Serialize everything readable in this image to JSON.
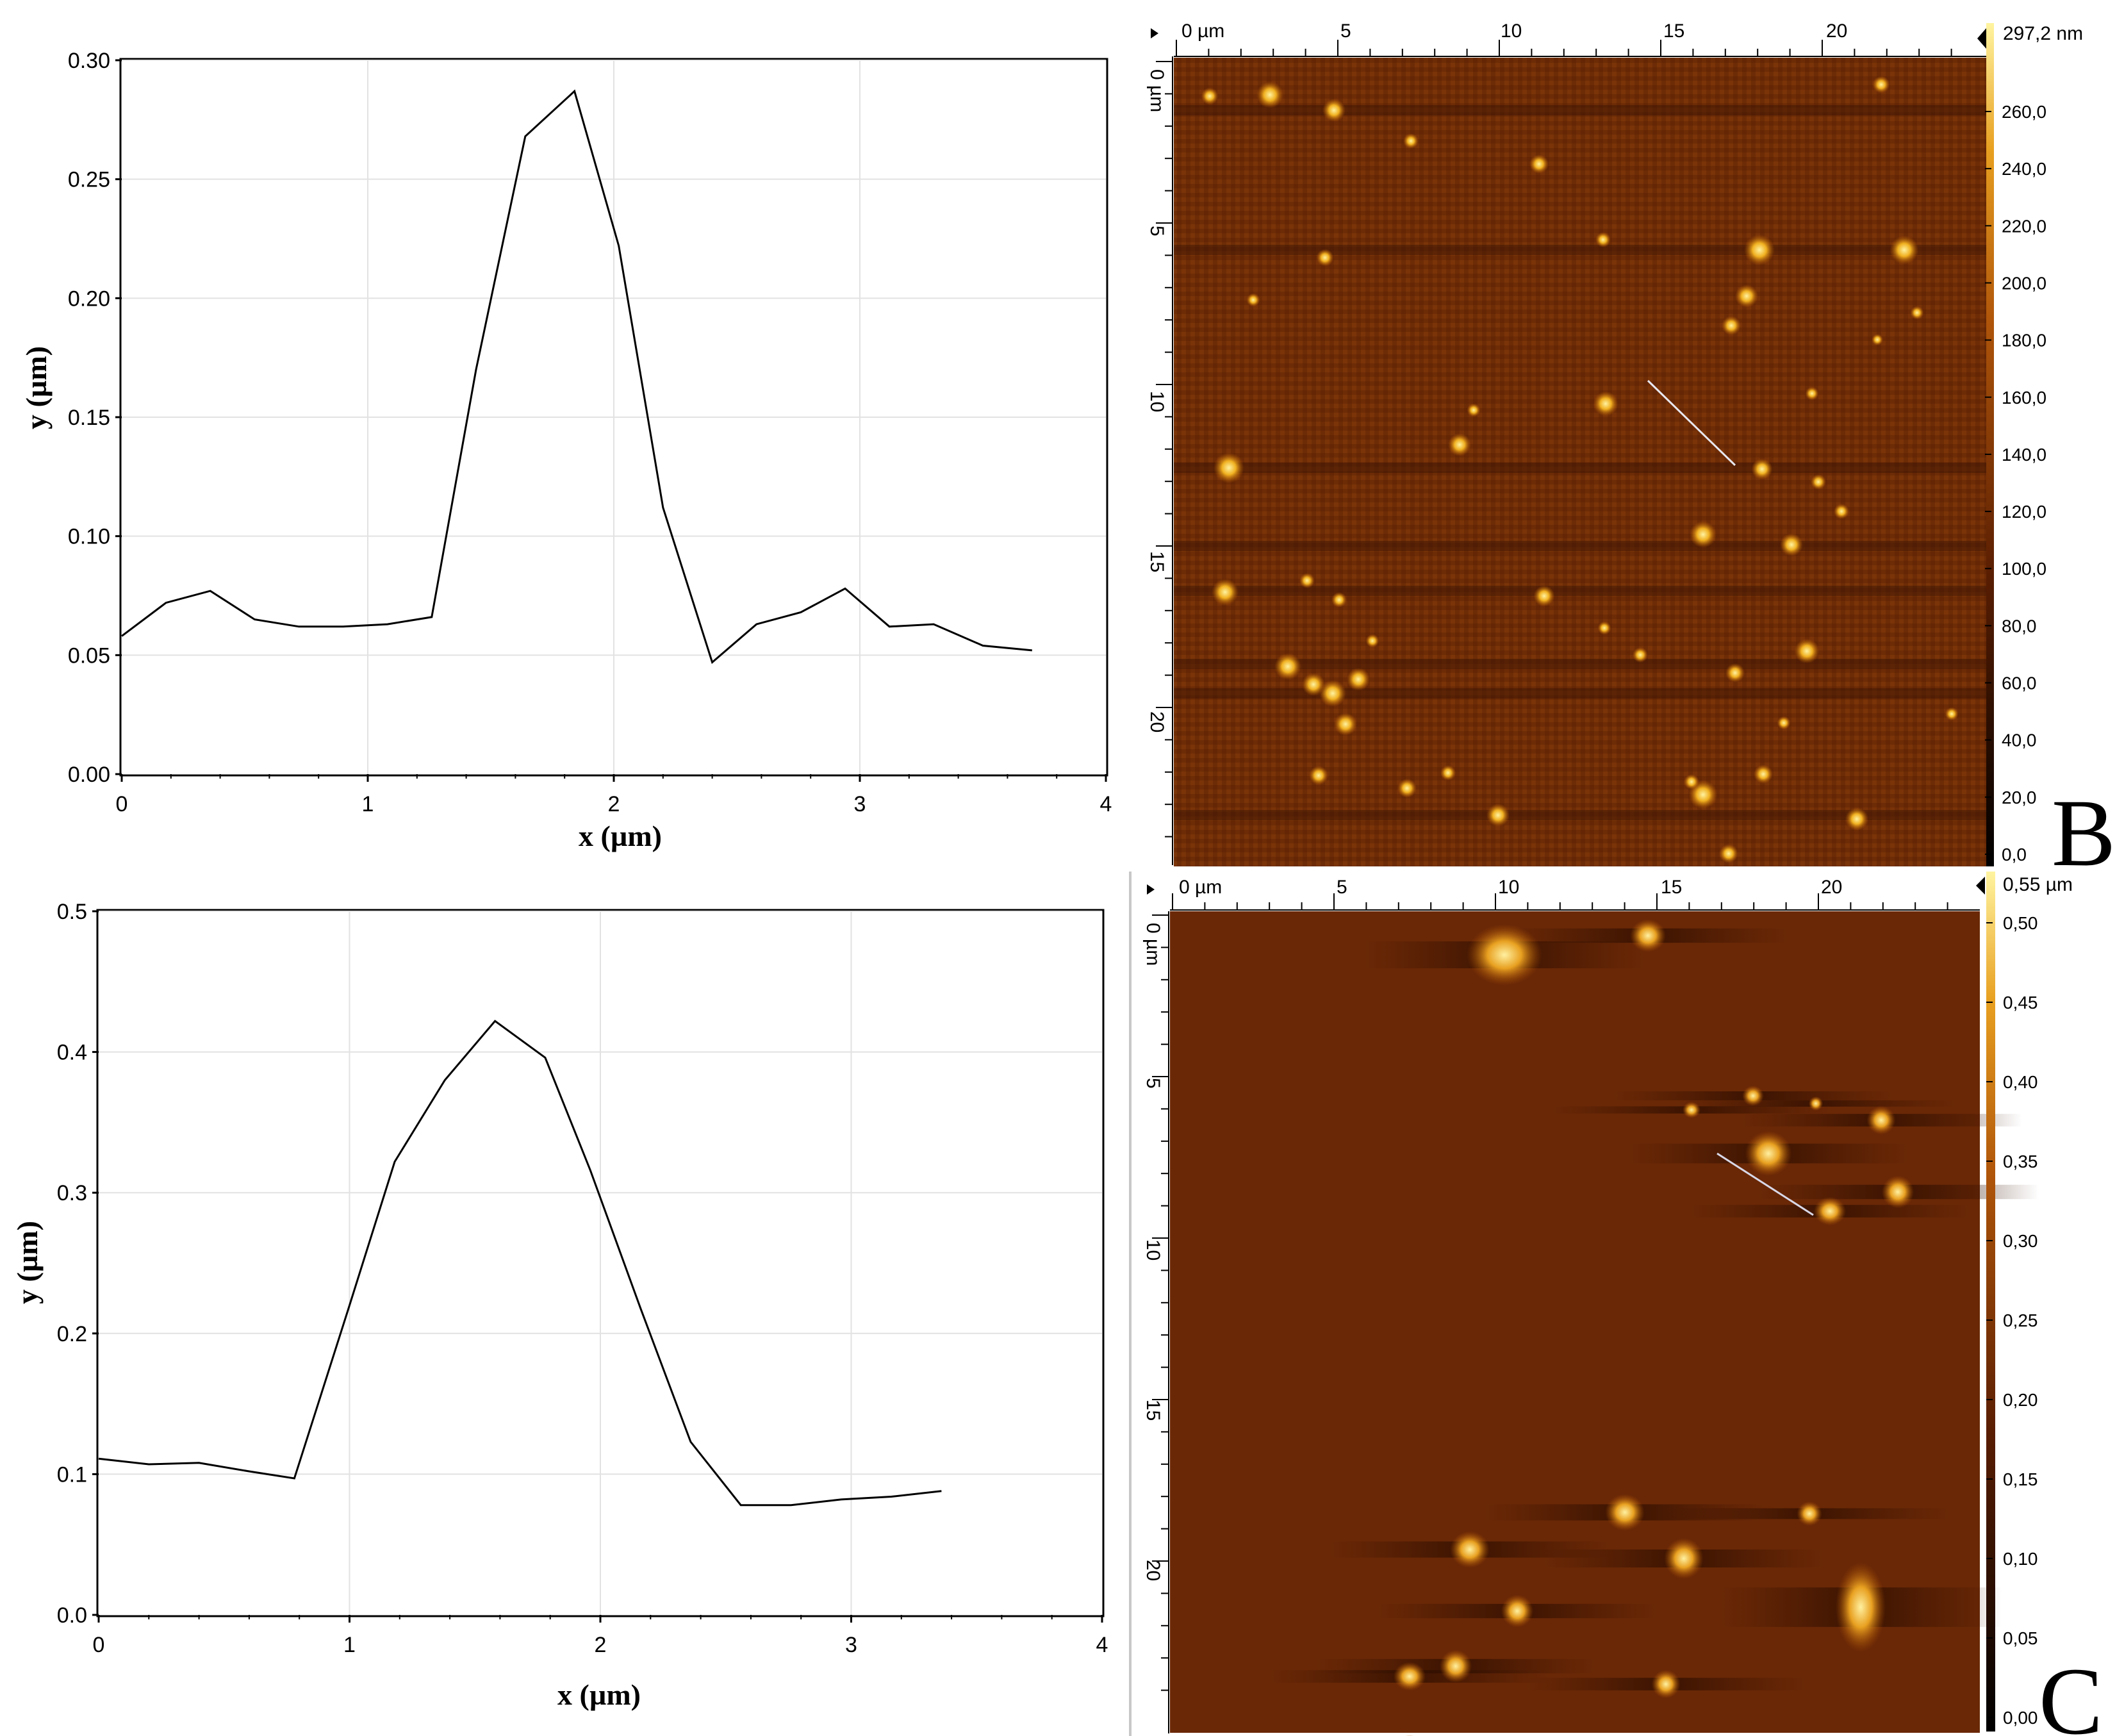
{
  "chart_data": [
    {
      "type": "line",
      "title": "",
      "xlabel": "x (µm)",
      "ylabel": "y (µm)",
      "xlim": [
        0,
        4
      ],
      "ylim": [
        0,
        0.3
      ],
      "xticks": [
        "0",
        "1",
        "2",
        "3",
        "4"
      ],
      "yticks": [
        "0.00",
        "0.05",
        "0.10",
        "0.15",
        "0.20",
        "0.25",
        "0.30"
      ],
      "grid": true,
      "x": [
        0,
        0.18,
        0.36,
        0.54,
        0.72,
        0.9,
        1.08,
        1.26,
        1.44,
        1.64,
        1.84,
        2.02,
        2.2,
        2.4,
        2.58,
        2.76,
        2.94,
        3.12,
        3.3,
        3.5,
        3.7
      ],
      "y": [
        0.058,
        0.072,
        0.077,
        0.065,
        0.062,
        0.062,
        0.063,
        0.066,
        0.17,
        0.268,
        0.287,
        0.222,
        0.112,
        0.047,
        0.063,
        0.068,
        0.078,
        0.062,
        0.063,
        0.054,
        0.052
      ]
    },
    {
      "type": "line",
      "title": "",
      "xlabel": "x (µm)",
      "ylabel": "y (µm)",
      "xlim": [
        0,
        4
      ],
      "ylim": [
        0,
        0.5
      ],
      "xticks": [
        "0",
        "1",
        "2",
        "3",
        "4"
      ],
      "yticks": [
        "0.0",
        "0.1",
        "0.2",
        "0.3",
        "0.4",
        "0.5"
      ],
      "grid": true,
      "x": [
        0,
        0.2,
        0.4,
        0.6,
        0.78,
        1.0,
        1.18,
        1.38,
        1.58,
        1.78,
        1.96,
        2.16,
        2.36,
        2.56,
        2.76,
        2.96,
        3.16,
        3.36
      ],
      "y": [
        0.111,
        0.107,
        0.108,
        0.102,
        0.097,
        0.22,
        0.322,
        0.38,
        0.422,
        0.396,
        0.316,
        0.218,
        0.123,
        0.078,
        0.078,
        0.082,
        0.084,
        0.088
      ]
    }
  ],
  "afm_images": [
    {
      "panel_label": "B",
      "x_ruler": [
        "0 µm",
        "5",
        "10",
        "15",
        "20"
      ],
      "y_ruler": [
        "0 µm",
        "5",
        "10",
        "15",
        "20"
      ],
      "colorbar_max": "297,2 nm",
      "colorbar_ticks": [
        "260,0",
        "240,0",
        "220,0",
        "200,0",
        "180,0",
        "160,0",
        "140,0",
        "120,0",
        "100,0",
        "80,0",
        "60,0",
        "40,0",
        "20,0",
        "0,0"
      ]
    },
    {
      "panel_label": "C",
      "x_ruler": [
        "0 µm",
        "5",
        "10",
        "15",
        "20"
      ],
      "y_ruler": [
        "0 µm",
        "5",
        "10",
        "15",
        "20"
      ],
      "colorbar_max": "0,55 µm",
      "colorbar_ticks": [
        "0,50",
        "0,45",
        "0,40",
        "0,35",
        "0,30",
        "0,25",
        "0,20",
        "0,15",
        "0,10",
        "0,05",
        "0,00"
      ]
    }
  ]
}
